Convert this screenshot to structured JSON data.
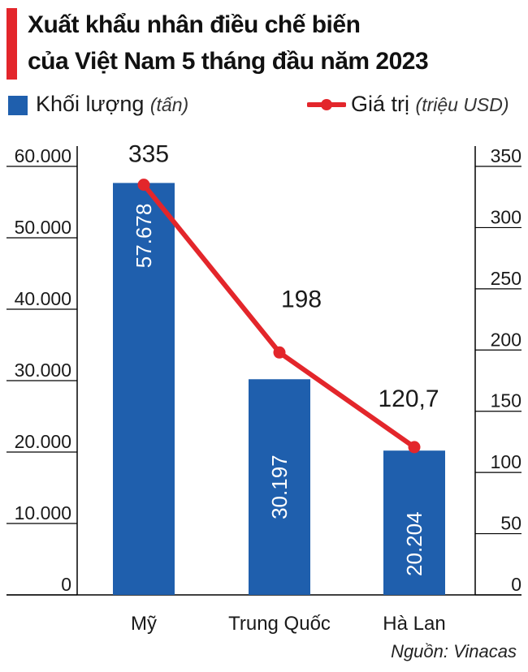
{
  "colors": {
    "accent": "#e3262b",
    "bar": "#1f5fad",
    "line": "#e3262b",
    "text": "#1a1a1a",
    "grid": "#000000"
  },
  "title": {
    "line1": "Xuất khẩu nhân điều chế biến",
    "line2": "của Việt Nam 5 tháng đầu năm 2023"
  },
  "legend": {
    "volume_label": "Khối lượng",
    "volume_unit": "(tấn)",
    "value_label": "Giá trị",
    "value_unit": "(triệu USD)"
  },
  "source": "Nguồn: Vinacas",
  "chart_data": {
    "type": "bar",
    "title": "Xuất khẩu nhân điều chế biến của Việt Nam 5 tháng đầu năm 2023",
    "categories": [
      "Mỹ",
      "Trung Quốc",
      "Hà Lan"
    ],
    "series": [
      {
        "name": "Khối lượng (tấn)",
        "type": "bar",
        "axis": "left",
        "values": [
          57678,
          30197,
          20204
        ],
        "labels": [
          "57.678",
          "30.197",
          "20.204"
        ]
      },
      {
        "name": "Giá trị (triệu USD)",
        "type": "line",
        "axis": "right",
        "values": [
          335,
          198,
          120.7
        ],
        "labels": [
          "335",
          "198",
          "120,7"
        ]
      }
    ],
    "y_left": {
      "min": 0,
      "max": 60000,
      "ticks": [
        "0",
        "10.000",
        "20.000",
        "30.000",
        "40.000",
        "50.000",
        "60.000"
      ]
    },
    "y_right": {
      "min": 0,
      "max": 350,
      "ticks": [
        "0",
        "50",
        "100",
        "150",
        "200",
        "250",
        "300",
        "350"
      ]
    },
    "grid": false,
    "legend_position": "top"
  }
}
